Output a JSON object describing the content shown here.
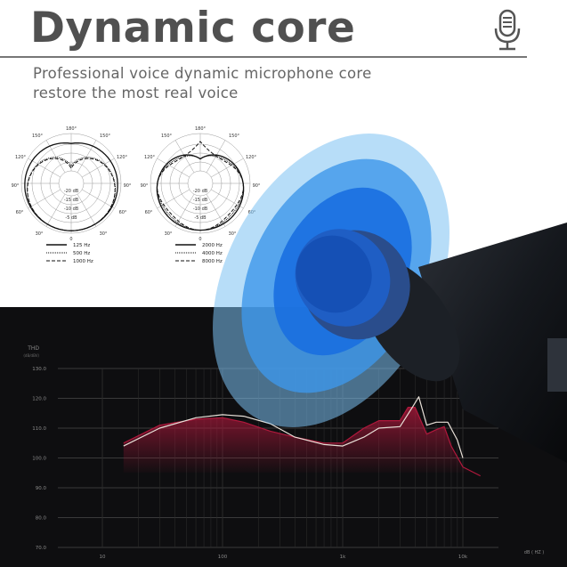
{
  "header": {
    "title": "Dynamic core",
    "subtitle_line1": "Professional voice dynamic microphone core",
    "subtitle_line2": "restore the most real voice",
    "icon": "microphone-icon"
  },
  "polar_charts": [
    {
      "angle_labels": [
        "180°",
        "150°",
        "150°",
        "120°",
        "120°",
        "90°",
        "90°",
        "60°",
        "60°",
        "30°",
        "30°",
        "0"
      ],
      "db_labels": [
        "-20 dB",
        "-15 dB",
        "-10 dB",
        "-5 dB"
      ],
      "legend": [
        {
          "label": "125 Hz",
          "style": "solid"
        },
        {
          "label": "500 Hz",
          "style": "dotted"
        },
        {
          "label": "1000 Hz",
          "style": "dashed"
        }
      ]
    },
    {
      "angle_labels": [
        "180°",
        "150°",
        "150°",
        "120°",
        "120°",
        "90°",
        "90°",
        "60°",
        "60°",
        "30°",
        "30°",
        "0"
      ],
      "db_labels": [
        "-20 dB",
        "-15 dB",
        "-10 dB",
        "-5 dB"
      ],
      "legend": [
        {
          "label": "2000 Hz",
          "style": "solid"
        },
        {
          "label": "4000 Hz",
          "style": "dotted"
        },
        {
          "label": "8000 Hz",
          "style": "dashed"
        }
      ]
    }
  ],
  "chart_data": {
    "type": "line",
    "ylabel": "THD",
    "ylabel_sub": "(dB/dBV)",
    "xlabel": "dB ( HZ )",
    "x_scale": "log",
    "x_ticks": [
      10,
      100,
      1000,
      10000
    ],
    "x_tick_labels": [
      "10",
      "100",
      "1k",
      "10k"
    ],
    "y_ticks": [
      130,
      120,
      110,
      100,
      90,
      80,
      70
    ],
    "y_tick_labels": [
      "130.0",
      "120.0",
      "110.0",
      "100.0",
      "90.0",
      "80.0",
      "70.0"
    ],
    "ylim": [
      70,
      130
    ],
    "grid": true,
    "series": [
      {
        "color": "#e8e0d8",
        "fill": false,
        "x": [
          15,
          30,
          60,
          100,
          150,
          250,
          400,
          700,
          1000,
          1500,
          2000,
          3000,
          3800,
          4300,
          5000,
          6000,
          7500,
          9000,
          10000
        ],
        "y": [
          104,
          110,
          113.5,
          114.5,
          114,
          111.5,
          107,
          104.5,
          104,
          107,
          110,
          110.5,
          117,
          120.5,
          111,
          112,
          112,
          106,
          100
        ]
      },
      {
        "color": "#b0183c",
        "fill": true,
        "x": [
          15,
          30,
          60,
          100,
          150,
          250,
          400,
          700,
          1000,
          1500,
          2000,
          3000,
          3500,
          4000,
          5000,
          6000,
          7000,
          8000,
          10000,
          14000
        ],
        "y": [
          105,
          111,
          113,
          113.5,
          112,
          109,
          107,
          105,
          105,
          110,
          112.5,
          112.5,
          117,
          117,
          108,
          109.5,
          110.5,
          104,
          97,
          94
        ]
      }
    ],
    "colors": {
      "background": "#0e0e10",
      "grid": "#3a3a3a",
      "labels": "#8a8a8a"
    }
  }
}
